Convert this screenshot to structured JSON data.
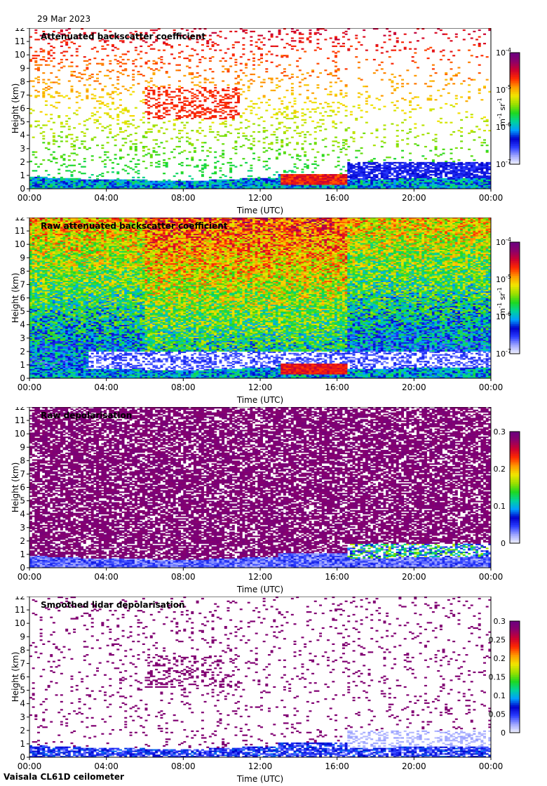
{
  "date": "29 Mar 2023",
  "footer": "Vaisala CL61D ceilometer",
  "colors": {
    "background": "#ffffff",
    "no_signal": "#d9d9e6",
    "colormap": [
      "#f4f4ff",
      "#9fa6ff",
      "#2a3cff",
      "#0000cc",
      "#00a0ff",
      "#00d49a",
      "#1fd81f",
      "#9be000",
      "#f2e600",
      "#ff9a00",
      "#ff2a00",
      "#cc0030",
      "#8c006a",
      "#6c0080"
    ]
  },
  "chart_data": [
    {
      "type": "heatmap",
      "title": "Attenuated backscatter coefficient",
      "xlabel": "Time (UTC)",
      "ylabel": "Height (km)",
      "x_ticks": [
        "00:00",
        "04:00",
        "08:00",
        "12:00",
        "16:00",
        "20:00",
        "00:00"
      ],
      "xlim": [
        0,
        24
      ],
      "ylim": [
        0,
        12
      ],
      "y_ticks": [
        "0",
        "1",
        "2",
        "3",
        "4",
        "5",
        "6",
        "7",
        "8",
        "9",
        "10",
        "11",
        "12"
      ],
      "colorbar": {
        "scale": "log",
        "ticks": [
          {
            "base": "10",
            "exp": "-4"
          },
          {
            "base": "10",
            "exp": "-5"
          },
          {
            "base": "10",
            "exp": "-6"
          },
          {
            "base": "10",
            "exp": "-7"
          }
        ],
        "unit": {
          "p1": "m",
          "e1": "-1",
          "p2": " sr",
          "e2": "-1"
        },
        "range": [
          1e-07,
          0.0001
        ]
      }
    },
    {
      "type": "heatmap",
      "title": "Raw attenuated backscatter coefficient",
      "xlabel": "Time (UTC)",
      "ylabel": "Height (km)",
      "x_ticks": [
        "00:00",
        "04:00",
        "08:00",
        "12:00",
        "16:00",
        "20:00",
        "00:00"
      ],
      "xlim": [
        0,
        24
      ],
      "ylim": [
        0,
        12
      ],
      "y_ticks": [
        "0",
        "1",
        "2",
        "3",
        "4",
        "5",
        "6",
        "7",
        "8",
        "9",
        "10",
        "11",
        "12"
      ],
      "colorbar": {
        "scale": "log",
        "ticks": [
          {
            "base": "10",
            "exp": "-4"
          },
          {
            "base": "10",
            "exp": "-5"
          },
          {
            "base": "10",
            "exp": "-6"
          },
          {
            "base": "10",
            "exp": "-7"
          }
        ],
        "unit": {
          "p1": "m",
          "e1": "-1",
          "p2": " sr",
          "e2": "-1"
        },
        "range": [
          1e-07,
          0.0001
        ]
      }
    },
    {
      "type": "heatmap",
      "title": "Raw depolarisation",
      "xlabel": "Time (UTC)",
      "ylabel": "Height (km)",
      "x_ticks": [
        "00:00",
        "04:00",
        "08:00",
        "12:00",
        "16:00",
        "20:00",
        "00:00"
      ],
      "xlim": [
        0,
        24
      ],
      "ylim": [
        0,
        12
      ],
      "y_ticks": [
        "0",
        "1",
        "2",
        "3",
        "4",
        "5",
        "6",
        "7",
        "8",
        "9",
        "10",
        "11",
        "12"
      ],
      "colorbar": {
        "scale": "linear",
        "ticks": [
          "0.3",
          "0.2",
          "0.1",
          "0"
        ],
        "range": [
          0,
          0.3
        ]
      }
    },
    {
      "type": "heatmap",
      "title": "Smoothed lidar depolarisation",
      "xlabel": "Time (UTC)",
      "ylabel": "Height (km)",
      "x_ticks": [
        "00:00",
        "04:00",
        "08:00",
        "12:00",
        "16:00",
        "20:00",
        "00:00"
      ],
      "xlim": [
        0,
        24
      ],
      "ylim": [
        0,
        12
      ],
      "y_ticks": [
        "0",
        "1",
        "2",
        "3",
        "4",
        "5",
        "6",
        "7",
        "8",
        "9",
        "10",
        "11",
        "12"
      ],
      "colorbar": {
        "scale": "linear",
        "ticks": [
          "0.3",
          "0.25",
          "0.2",
          "0.15",
          "0.1",
          "0.05",
          "0"
        ],
        "range": [
          0,
          0.3
        ]
      }
    }
  ]
}
